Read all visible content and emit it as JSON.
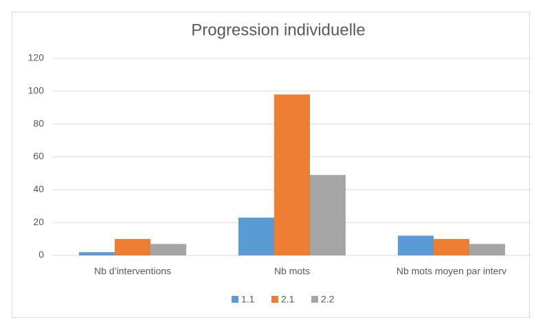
{
  "chart_data": {
    "type": "bar",
    "title": "Progression individuelle",
    "categories": [
      "Nb d’interventions",
      "Nb mots",
      "Nb mots moyen par interv"
    ],
    "series": [
      {
        "name": "1.1",
        "color": "#5b9bd5",
        "values": [
          2,
          23,
          12
        ]
      },
      {
        "name": "2.1",
        "color": "#ed7d31",
        "values": [
          10,
          98,
          10
        ]
      },
      {
        "name": "2.2",
        "color": "#a5a5a5",
        "values": [
          7,
          49,
          7
        ]
      }
    ],
    "ylim": [
      0,
      120
    ],
    "yticks": [
      0,
      20,
      40,
      60,
      80,
      100,
      120
    ],
    "grid": true,
    "legend": "bottom"
  }
}
